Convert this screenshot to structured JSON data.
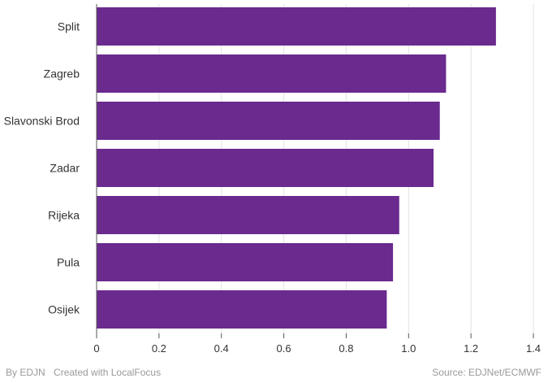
{
  "chart_data": {
    "type": "bar",
    "orientation": "horizontal",
    "categories": [
      "Split",
      "Zagreb",
      "Slavonski Brod",
      "Zadar",
      "Rijeka",
      "Pula",
      "Osijek"
    ],
    "values": [
      1.28,
      1.12,
      1.1,
      1.08,
      0.97,
      0.95,
      0.93
    ],
    "xlim": [
      0,
      1.4
    ],
    "x_ticks": [
      "0",
      "0.2",
      "0.4",
      "0.6",
      "0.8",
      "1.0",
      "1.2",
      "1.4"
    ],
    "grid": "vertical",
    "bar_color": "#6a2a8e"
  },
  "footer": {
    "byline": "By EDJN",
    "credit": "Created with LocalFocus",
    "source": "Source: EDJNet/ECMWF"
  }
}
